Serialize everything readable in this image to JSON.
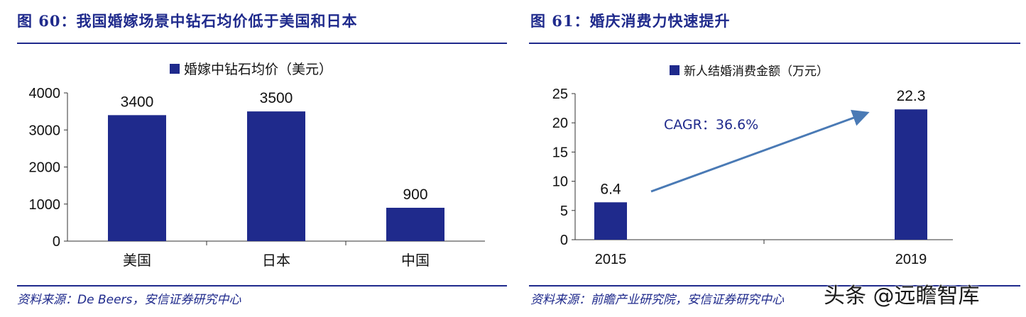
{
  "left": {
    "figure_title": "图 60：我国婚嫁场景中钻石均价低于美国和日本",
    "source": "资料来源：De Beers，安信证券研究中心"
  },
  "right": {
    "figure_title": "图 61：婚庆消费力快速提升",
    "source": "资料来源：前瞻产业研究院，安信证券研究中心"
  },
  "watermark": "头条 @远瞻智库",
  "chart_data": [
    {
      "type": "bar",
      "title": "",
      "categories": [
        "美国",
        "日本",
        "中国"
      ],
      "series": [
        {
          "name": "婚嫁中钻石均价（美元）",
          "values": [
            3400,
            3500,
            900
          ]
        }
      ],
      "data_labels": [
        "3400",
        "3500",
        "900"
      ],
      "yticks": [
        "0",
        "1000",
        "2000",
        "3000",
        "4000"
      ],
      "ylim": [
        0,
        4000
      ],
      "grid": false,
      "legend": "top-center",
      "bar_color": "#1f2a8c"
    },
    {
      "type": "bar",
      "title": "",
      "categories": [
        "2015",
        "2019"
      ],
      "series": [
        {
          "name": "新人结婚消费金额（万元）",
          "values": [
            6.4,
            22.3
          ]
        }
      ],
      "data_labels": [
        "6.4",
        "22.3"
      ],
      "yticks": [
        "0",
        "5",
        "10",
        "15",
        "20",
        "25"
      ],
      "ylim": [
        0,
        25
      ],
      "grid": false,
      "legend": "top-center",
      "annotation": "CAGR：36.6%",
      "bar_color": "#1f2a8c",
      "arrow_color": "#4a7ab5"
    }
  ]
}
